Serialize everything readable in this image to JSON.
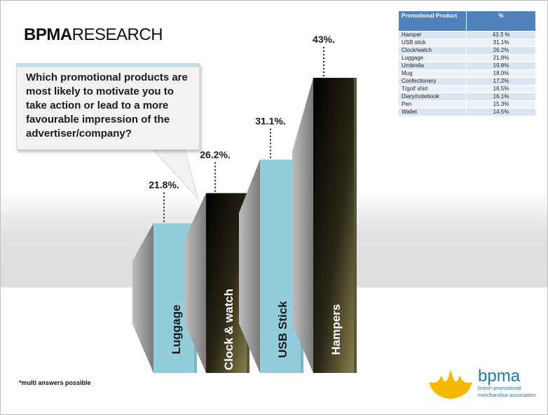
{
  "header": {
    "title_bold": "BPMA",
    "title_rest": "RESEARCH"
  },
  "question": "Which promotional products are most likely to motivate you to take action or lead to a more favourable impression of the advertiser/company?",
  "footnote": "*multi answers possible",
  "logo": {
    "name": "bpma",
    "subtitle": "british promotional merchandise association"
  },
  "colors": {
    "blue_bar": "#92cddc",
    "dark_bar": "#1a1a12",
    "table_header": "#4f81bd",
    "logo": "#1f79b5",
    "crown": "#f5b800"
  },
  "table": {
    "headers": [
      "Promotional Product",
      "%"
    ],
    "rows": [
      [
        "Hamper",
        "43.3 %"
      ],
      [
        "USB stick",
        "31.1%"
      ],
      [
        "Clock/watch",
        "26.2%"
      ],
      [
        "Luggage",
        "21.8%"
      ],
      [
        "Umbrella",
        "19.8%"
      ],
      [
        "Mug",
        "18.0%"
      ],
      [
        "Confectionery",
        "17.2%"
      ],
      [
        "T/golf shirt",
        "16.5%"
      ],
      [
        "Diary/notebook",
        "16.1%"
      ],
      [
        "Pen",
        "15.3%"
      ],
      [
        "Wallet",
        "14.5%"
      ]
    ]
  },
  "chart_data": {
    "type": "bar",
    "categories": [
      "Luggage",
      "Clock & watch",
      "USB Stick",
      "Hampers"
    ],
    "values": [
      21.8,
      26.2,
      31.1,
      43.0
    ],
    "value_labels": [
      "21.8%.",
      "26.2%.",
      "31.1%.",
      "43%."
    ],
    "styles": [
      "light",
      "dark",
      "light",
      "dark"
    ]
  }
}
